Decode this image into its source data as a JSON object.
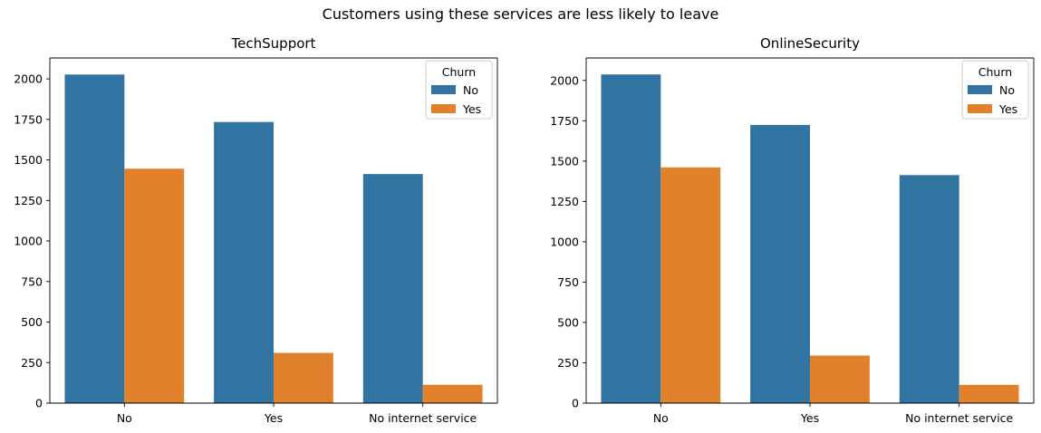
{
  "figure": {
    "suptitle": "Customers using these services are less likely to leave"
  },
  "chart_data": [
    {
      "type": "bar",
      "title": "TechSupport",
      "xlabel": "",
      "ylabel": "",
      "categories": [
        "No",
        "Yes",
        "No internet service"
      ],
      "series": [
        {
          "name": "No",
          "color": "#3274a1",
          "values": [
            2027,
            1734,
            1413
          ]
        },
        {
          "name": "Yes",
          "color": "#e1812c",
          "values": [
            1446,
            310,
            113
          ]
        }
      ],
      "ylim": [
        0,
        2129
      ],
      "yticks": [
        0,
        250,
        500,
        750,
        1000,
        1250,
        1500,
        1750,
        2000
      ],
      "legend": {
        "title": "Churn",
        "placement": "top-right"
      },
      "grid": false
    },
    {
      "type": "bar",
      "title": "OnlineSecurity",
      "xlabel": "",
      "ylabel": "",
      "categories": [
        "No",
        "Yes",
        "No internet service"
      ],
      "series": [
        {
          "name": "No",
          "color": "#3274a1",
          "values": [
            2037,
            1724,
            1413
          ]
        },
        {
          "name": "Yes",
          "color": "#e1812c",
          "values": [
            1461,
            295,
            113
          ]
        }
      ],
      "ylim": [
        0,
        2139
      ],
      "yticks": [
        0,
        250,
        500,
        750,
        1000,
        1250,
        1500,
        1750,
        2000
      ],
      "legend": {
        "title": "Churn",
        "placement": "top-right"
      },
      "grid": false
    }
  ]
}
